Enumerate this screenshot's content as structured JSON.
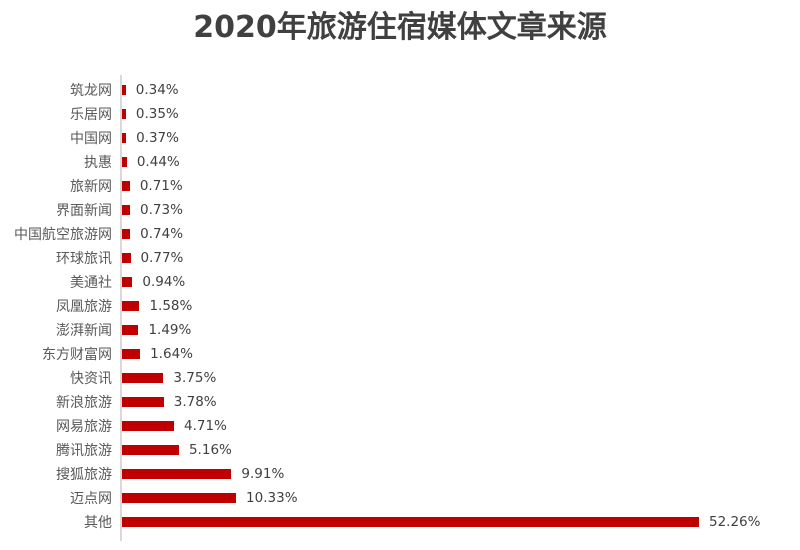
{
  "title": "2020年旅游住宿媒体文章来源",
  "colors": {
    "bar": "#C00000",
    "title_text": "#404040",
    "category_label": "#595959",
    "value_label": "#404040",
    "axis_line": "#D9D9D9",
    "background": "#FFFFFF"
  },
  "chart_data": {
    "type": "bar",
    "orientation": "horizontal",
    "title": "2020年旅游住宿媒体文章来源",
    "categories": [
      "筑龙网",
      "乐居网",
      "中国网",
      "执惠",
      "旅新网",
      "界面新闻",
      "中国航空旅游网",
      "环球旅讯",
      "美通社",
      "凤凰旅游",
      "澎湃新闻",
      "东方财富网",
      "快资讯",
      "新浪旅游",
      "网易旅游",
      "腾讯旅游",
      "搜狐旅游",
      "迈点网",
      "其他"
    ],
    "values": [
      0.34,
      0.35,
      0.37,
      0.44,
      0.71,
      0.73,
      0.74,
      0.77,
      0.94,
      1.58,
      1.49,
      1.64,
      3.75,
      3.78,
      4.71,
      5.16,
      9.91,
      10.33,
      52.26
    ],
    "value_labels": [
      "0.34%",
      "0.35%",
      "0.37%",
      "0.44%",
      "0.71%",
      "0.73%",
      "0.74%",
      "0.77%",
      "0.94%",
      "1.58%",
      "1.49%",
      "1.64%",
      "3.75%",
      "3.78%",
      "4.71%",
      "5.16%",
      "9.91%",
      "10.33%",
      "52.26%"
    ],
    "unit": "%",
    "xlabel": "",
    "ylabel": "",
    "xlim": [
      0,
      52.26
    ],
    "grid": false,
    "legend": false,
    "data_labels": "outside-end",
    "bar_color": "#C00000"
  }
}
